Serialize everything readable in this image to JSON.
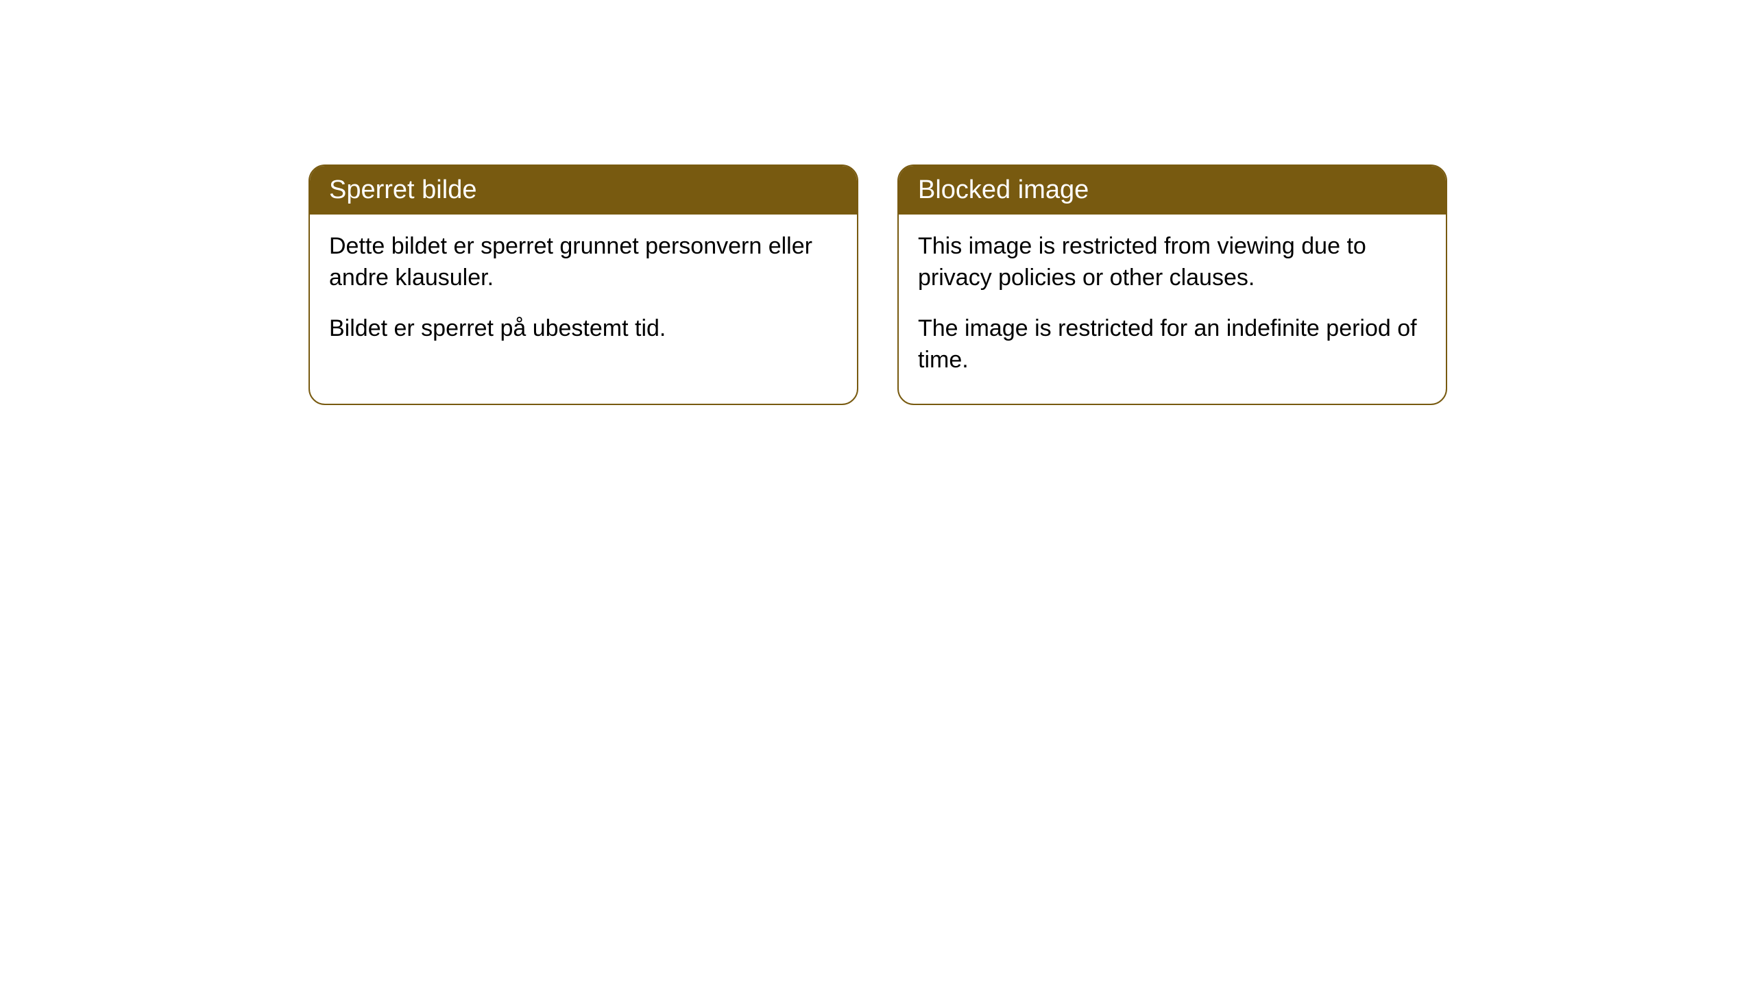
{
  "cards": [
    {
      "title": "Sperret bilde",
      "paragraph1": "Dette bildet er sperret grunnet personvern eller andre klausuler.",
      "paragraph2": "Bildet er sperret på ubestemt tid."
    },
    {
      "title": "Blocked image",
      "paragraph1": "This image is restricted from viewing due to privacy policies or other clauses.",
      "paragraph2": "The image is restricted for an indefinite period of time."
    }
  ],
  "styling": {
    "header_background": "#785a10",
    "header_text_color": "#ffffff",
    "border_color": "#785a10",
    "body_text_color": "#000000",
    "body_background": "#ffffff",
    "border_radius": 24,
    "header_fontsize": 38,
    "body_fontsize": 34
  }
}
